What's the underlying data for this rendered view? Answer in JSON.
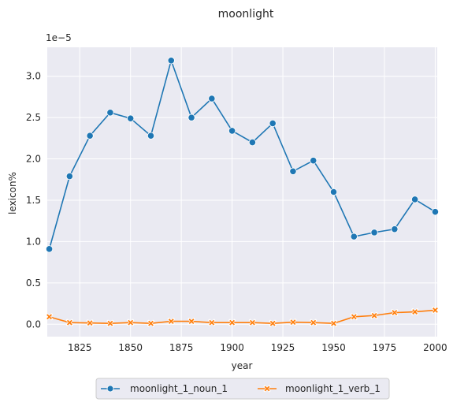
{
  "chart_data": {
    "type": "line",
    "title": "moonlight",
    "xlabel": "year",
    "ylabel": "lexicon%",
    "y_scale_label": "1e−5",
    "xlim": [
      1809,
      2001
    ],
    "ylim": [
      -0.15,
      3.35
    ],
    "x_ticks": [
      1825,
      1850,
      1875,
      1900,
      1925,
      1950,
      1975,
      2000
    ],
    "y_ticks": [
      0.0,
      0.5,
      1.0,
      1.5,
      2.0,
      2.5,
      3.0
    ],
    "y_tick_labels": [
      "0.0",
      "0.5",
      "1.0",
      "1.5",
      "2.0",
      "2.5",
      "3.0"
    ],
    "x": [
      1810,
      1820,
      1830,
      1840,
      1850,
      1860,
      1870,
      1880,
      1890,
      1900,
      1910,
      1920,
      1930,
      1940,
      1950,
      1960,
      1970,
      1980,
      1990,
      2000
    ],
    "series": [
      {
        "name": "moonlight_1_noun_1",
        "color": "#1f77b4",
        "marker": "circle",
        "values": [
          0.91,
          1.79,
          2.28,
          2.56,
          2.49,
          2.28,
          3.19,
          2.5,
          2.73,
          2.34,
          2.2,
          2.43,
          1.85,
          1.98,
          1.6,
          1.06,
          1.11,
          1.15,
          1.51,
          1.36
        ]
      },
      {
        "name": "moonlight_1_verb_1",
        "color": "#ff7f0e",
        "marker": "x",
        "values": [
          0.09,
          0.02,
          0.015,
          0.01,
          0.02,
          0.01,
          0.035,
          0.035,
          0.02,
          0.02,
          0.02,
          0.01,
          0.025,
          0.02,
          0.01,
          0.09,
          0.105,
          0.14,
          0.15,
          0.17
        ]
      }
    ],
    "legend_position": "bottom-center",
    "grid": true
  }
}
